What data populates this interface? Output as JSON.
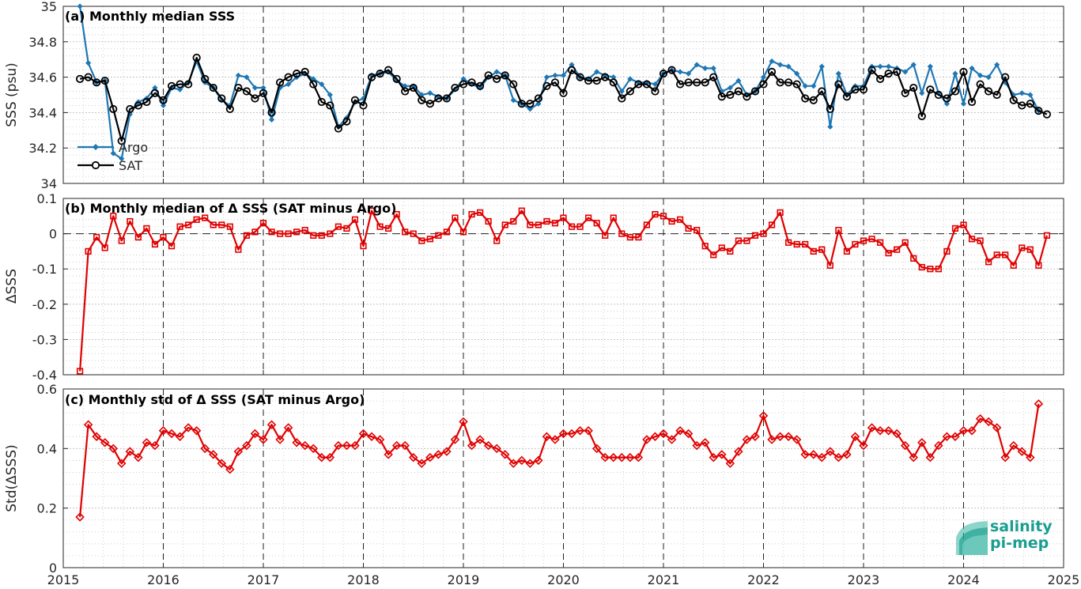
{
  "colors": {
    "argo": "#1f77b4",
    "sat": "#000000",
    "delta": "#e00000",
    "grid": "#bcbcbc",
    "year_line": "#222222",
    "logo_teal": "#1a9e8f"
  },
  "logo": {
    "line1": "salinity",
    "line2": "pi-mep"
  },
  "x_ticks": [
    "2015",
    "2016",
    "2017",
    "2018",
    "2019",
    "2020",
    "2021",
    "2022",
    "2023",
    "2024",
    "2025"
  ],
  "chart_data": [
    {
      "type": "line",
      "title": "(a) Monthly median SSS",
      "xlabel": "",
      "ylabel": "SSS (psu)",
      "xlim": [
        "2015-01",
        "2025-01"
      ],
      "ylim": [
        34,
        35
      ],
      "y_ticks": [
        "34",
        "34.2",
        "34.4",
        "34.6",
        "34.8",
        "35"
      ],
      "x_start": "2015-03",
      "legend": [
        "Argo",
        "SAT"
      ],
      "legend_position": "bottom-left",
      "grid": true,
      "series": [
        {
          "name": "Argo",
          "marker": "diamond-filled",
          "values": [
            35.0,
            34.68,
            34.57,
            34.58,
            34.17,
            34.14,
            34.39,
            34.46,
            34.48,
            34.54,
            34.44,
            34.54,
            34.53,
            34.57,
            34.69,
            34.57,
            34.54,
            34.47,
            34.44,
            34.61,
            34.6,
            34.54,
            34.54,
            34.36,
            34.54,
            34.56,
            34.6,
            34.62,
            34.59,
            34.56,
            34.5,
            34.32,
            34.37,
            34.46,
            34.48,
            34.61,
            34.62,
            34.63,
            34.58,
            34.55,
            34.55,
            34.5,
            34.51,
            34.49,
            34.48,
            34.53,
            34.59,
            34.56,
            34.54,
            34.6,
            34.63,
            34.61,
            34.47,
            34.45,
            34.42,
            34.45,
            34.6,
            34.61,
            34.61,
            34.67,
            34.6,
            34.59,
            34.63,
            34.61,
            34.6,
            34.52,
            34.59,
            34.57,
            34.57,
            34.56,
            34.62,
            34.64,
            34.63,
            34.62,
            34.67,
            34.65,
            34.65,
            34.52,
            34.54,
            34.58,
            34.5,
            34.52,
            34.6,
            34.69,
            34.67,
            34.66,
            34.62,
            34.55,
            34.55,
            34.66,
            34.32,
            34.62,
            34.5,
            34.55,
            34.55,
            34.66,
            34.66,
            34.66,
            34.65,
            34.63,
            34.67,
            34.51,
            34.66,
            34.51,
            34.45,
            34.62,
            34.45,
            34.65,
            34.61,
            34.6,
            34.67,
            34.57,
            34.5,
            34.51,
            34.5,
            34.41
          ]
        },
        {
          "name": "SAT",
          "marker": "circle-open",
          "values": [
            34.59,
            34.6,
            34.57,
            34.58,
            34.42,
            34.24,
            34.42,
            34.44,
            34.46,
            34.51,
            34.47,
            34.55,
            34.56,
            34.56,
            34.71,
            34.59,
            34.54,
            34.48,
            34.42,
            34.54,
            34.52,
            34.48,
            34.51,
            34.4,
            34.57,
            34.6,
            34.62,
            34.63,
            34.56,
            34.46,
            34.44,
            34.31,
            34.35,
            34.47,
            34.44,
            34.6,
            34.62,
            34.64,
            34.59,
            34.52,
            34.54,
            34.47,
            34.45,
            34.48,
            34.48,
            34.54,
            34.56,
            34.57,
            34.55,
            34.61,
            34.59,
            34.61,
            34.56,
            34.45,
            34.45,
            34.48,
            34.55,
            34.57,
            34.51,
            34.64,
            34.6,
            34.58,
            34.58,
            34.6,
            34.57,
            34.48,
            34.52,
            34.56,
            34.56,
            34.52,
            34.62,
            34.64,
            34.56,
            34.57,
            34.57,
            34.57,
            34.6,
            34.49,
            34.5,
            34.52,
            34.49,
            34.52,
            34.56,
            34.63,
            34.57,
            34.57,
            34.56,
            34.48,
            34.47,
            34.52,
            34.42,
            34.56,
            34.49,
            34.53,
            34.53,
            34.64,
            34.59,
            34.62,
            34.63,
            34.51,
            34.54,
            34.38,
            34.53,
            34.5,
            34.48,
            34.52,
            34.63,
            34.46,
            34.56,
            34.52,
            34.5,
            34.6,
            34.47,
            34.44,
            34.45,
            34.41,
            34.39
          ]
        }
      ]
    },
    {
      "type": "line",
      "title": "(b) Monthly median of Δ SSS (SAT minus Argo)",
      "xlabel": "",
      "ylabel": "ΔSSS",
      "xlim": [
        "2015-01",
        "2025-01"
      ],
      "ylim": [
        -0.4,
        0.1
      ],
      "y_ticks": [
        "-0.4",
        "-0.3",
        "-0.2",
        "-0.1",
        "0",
        "0.1"
      ],
      "x_start": "2015-03",
      "reference_line": 0,
      "grid": true,
      "series": [
        {
          "name": "",
          "marker": "square-open",
          "values": [
            -0.39,
            -0.05,
            -0.01,
            -0.04,
            0.05,
            -0.02,
            0.035,
            -0.01,
            0.015,
            -0.03,
            -0.01,
            -0.035,
            0.02,
            0.025,
            0.04,
            0.045,
            0.025,
            0.025,
            0.02,
            -0.045,
            -0.005,
            0.005,
            0.03,
            0.005,
            0.0,
            0.0,
            0.005,
            0.01,
            -0.005,
            -0.005,
            0.0,
            0.02,
            0.015,
            0.04,
            -0.035,
            0.065,
            0.02,
            0.015,
            0.055,
            0.005,
            0.0,
            -0.02,
            -0.015,
            -0.005,
            0.005,
            0.045,
            0.005,
            0.055,
            0.06,
            0.035,
            -0.02,
            0.025,
            0.035,
            0.065,
            0.025,
            0.025,
            0.035,
            0.03,
            0.045,
            0.02,
            0.02,
            0.045,
            0.03,
            -0.005,
            0.045,
            0.0,
            -0.01,
            -0.01,
            0.025,
            0.055,
            0.05,
            0.035,
            0.04,
            0.015,
            0.01,
            -0.035,
            -0.06,
            -0.04,
            -0.05,
            -0.02,
            -0.02,
            -0.005,
            0.0,
            0.025,
            0.06,
            -0.025,
            -0.03,
            -0.03,
            -0.05,
            -0.045,
            -0.09,
            0.01,
            -0.05,
            -0.03,
            -0.02,
            -0.015,
            -0.025,
            -0.055,
            -0.045,
            -0.025,
            -0.07,
            -0.095,
            -0.1,
            -0.1,
            -0.05,
            0.015,
            0.025,
            -0.015,
            -0.02,
            -0.08,
            -0.06,
            -0.06,
            -0.09,
            -0.04,
            -0.045,
            -0.09,
            -0.005
          ]
        }
      ]
    },
    {
      "type": "line",
      "title": "(c) Monthly std of Δ SSS (SAT minus Argo)",
      "xlabel": "",
      "ylabel": "Std(ΔSSS)",
      "xlim": [
        "2015-01",
        "2025-01"
      ],
      "ylim": [
        0,
        0.6
      ],
      "y_ticks": [
        "0",
        "0.2",
        "0.4",
        "0.6"
      ],
      "x_start": "2015-03",
      "grid": true,
      "series": [
        {
          "name": "",
          "marker": "diamond-open",
          "values": [
            0.17,
            0.48,
            0.44,
            0.42,
            0.4,
            0.35,
            0.39,
            0.37,
            0.42,
            0.41,
            0.46,
            0.45,
            0.44,
            0.47,
            0.46,
            0.4,
            0.38,
            0.35,
            0.33,
            0.39,
            0.41,
            0.45,
            0.43,
            0.48,
            0.43,
            0.47,
            0.42,
            0.41,
            0.4,
            0.37,
            0.37,
            0.41,
            0.41,
            0.41,
            0.45,
            0.44,
            0.43,
            0.38,
            0.41,
            0.41,
            0.37,
            0.35,
            0.37,
            0.38,
            0.39,
            0.43,
            0.49,
            0.41,
            0.43,
            0.41,
            0.4,
            0.38,
            0.35,
            0.36,
            0.35,
            0.36,
            0.44,
            0.43,
            0.45,
            0.45,
            0.46,
            0.46,
            0.4,
            0.37,
            0.37,
            0.37,
            0.37,
            0.37,
            0.43,
            0.44,
            0.45,
            0.43,
            0.46,
            0.45,
            0.41,
            0.42,
            0.37,
            0.38,
            0.35,
            0.39,
            0.43,
            0.44,
            0.51,
            0.43,
            0.44,
            0.44,
            0.43,
            0.38,
            0.38,
            0.37,
            0.39,
            0.37,
            0.38,
            0.44,
            0.41,
            0.47,
            0.46,
            0.46,
            0.45,
            0.41,
            0.37,
            0.42,
            0.37,
            0.41,
            0.44,
            0.44,
            0.46,
            0.46,
            0.5,
            0.49,
            0.47,
            0.37,
            0.41,
            0.39,
            0.37,
            0.55
          ]
        }
      ]
    }
  ]
}
